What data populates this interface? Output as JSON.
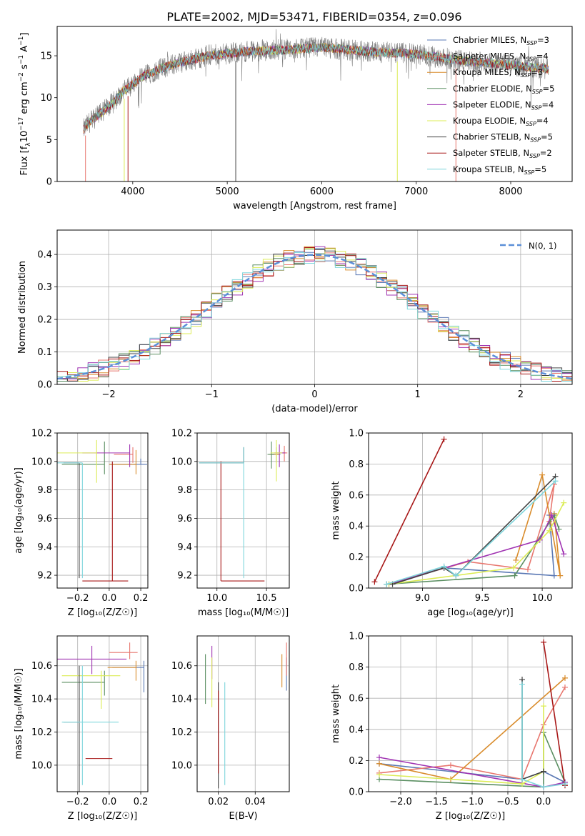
{
  "figure": {
    "title": "PLATE=2002, MJD=53471, FIBERID=0354, z=0.096"
  },
  "chart_data": [
    {
      "id": "spectrum",
      "type": "line",
      "xlabel": "wavelength [Angstrom, rest frame]",
      "ylabel": "Flux [f",
      "ylabel_parts": [
        "Flux [f",
        "λ",
        "10",
        "−17",
        " erg cm",
        "−2",
        " s",
        "−1",
        " A",
        "−1",
        "]"
      ],
      "xlim": [
        3200,
        8650
      ],
      "ylim": [
        0,
        18.5
      ],
      "xticks": [
        4000,
        5000,
        6000,
        7000,
        8000
      ],
      "yticks": [
        0,
        5,
        10,
        15
      ],
      "grid": false,
      "legend_position": "right",
      "legend": [
        {
          "label": "Chabrier MILES",
          "n": "3",
          "color": "#5a78b4"
        },
        {
          "label": "Salpeter MILES",
          "n": "4",
          "color": "#e8776f"
        },
        {
          "label": "Kroupa MILES",
          "n": "3",
          "color": "#d98c2c"
        },
        {
          "label": "Chabrier ELODIE",
          "n": "5",
          "color": "#5b8f62"
        },
        {
          "label": "Salpeter ELODIE",
          "n": "4",
          "color": "#a033b2"
        },
        {
          "label": "Kroupa ELODIE",
          "n": "4",
          "color": "#dcec56"
        },
        {
          "label": "Chabrier STELIB",
          "n": "5",
          "color": "#444444"
        },
        {
          "label": "Salpeter STELIB",
          "n": "2",
          "color": "#a81818"
        },
        {
          "label": "Kroupa STELIB",
          "n": "5",
          "color": "#7fd6dc"
        }
      ],
      "data_color": "#7f7f7f",
      "shape": [
        [
          3480,
          6.2
        ],
        [
          3550,
          7.2
        ],
        [
          3700,
          8.5
        ],
        [
          3800,
          9.5
        ],
        [
          3900,
          10.8
        ],
        [
          4000,
          11.6
        ],
        [
          4100,
          12.5
        ],
        [
          4300,
          13.5
        ],
        [
          4500,
          14.2
        ],
        [
          4800,
          15.0
        ],
        [
          5200,
          15.5
        ],
        [
          5600,
          15.7
        ],
        [
          6000,
          16.0
        ],
        [
          6500,
          15.5
        ],
        [
          7000,
          15.2
        ],
        [
          7500,
          14.4
        ],
        [
          8000,
          13.9
        ],
        [
          8400,
          13.4
        ]
      ]
    },
    {
      "id": "residual-hist",
      "type": "line",
      "xlabel": "(data-model)/error",
      "ylabel": "Normed distribution",
      "xlim": [
        -2.5,
        2.5
      ],
      "ylim": [
        0,
        0.475
      ],
      "xticks": [
        -2,
        -1,
        0,
        1,
        2
      ],
      "xtick_labels": [
        "−2",
        "−1",
        "0",
        "1",
        "2"
      ],
      "yticks": [
        0.0,
        0.1,
        0.2,
        0.3,
        0.4
      ],
      "ytick_labels": [
        "0.0",
        "0.1",
        "0.2",
        "0.3",
        "0.4"
      ],
      "grid": true,
      "legend_position": "top-right",
      "legend": [
        {
          "label": "N(0, 1)",
          "color": "#5b8fd8",
          "style": "dashed"
        }
      ],
      "bin_width": 0.1
    },
    {
      "id": "age-vs-Z",
      "type": "scatter",
      "xlabel": "Z [log₁₀(Z/Z☉)]",
      "ylabel": "age  [log₁₀(age/yr)]",
      "xlim": [
        -0.33,
        0.245
      ],
      "ylim": [
        9.11,
        10.2
      ],
      "xticks": [
        -0.2,
        0.0,
        0.2
      ],
      "xtick_labels": [
        "−0.2",
        "0.0",
        "0.2"
      ],
      "yticks": [
        9.2,
        9.4,
        9.6,
        9.8,
        10.0,
        10.2
      ],
      "ytick_labels": [
        "9.2",
        "9.4",
        "9.6",
        "9.8",
        "10.0",
        "10.2"
      ],
      "grid": true,
      "points": [
        {
          "color": "#5a78b4",
          "x": 0.2,
          "y": 9.98,
          "xerr": [
            0.2,
            0.04
          ],
          "yerr": [
            0.0,
            0.04
          ]
        },
        {
          "color": "#e8776f",
          "x": 0.15,
          "y": 10.05,
          "xerr": [
            0.12,
            0.0
          ],
          "yerr": [
            0.06,
            0.05
          ]
        },
        {
          "color": "#d98c2c",
          "x": 0.17,
          "y": 9.98,
          "xerr": [
            0.17,
            0.0
          ],
          "yerr": [
            0.07,
            0.1
          ]
        },
        {
          "color": "#5b8f62",
          "x": -0.03,
          "y": 9.98,
          "xerr": [
            0.27,
            0.0
          ],
          "yerr": [
            0.07,
            0.16
          ]
        },
        {
          "color": "#a033b2",
          "x": 0.13,
          "y": 10.06,
          "xerr": [
            0.3,
            0.0
          ],
          "yerr": [
            0.1,
            0.06
          ]
        },
        {
          "color": "#dcec56",
          "x": -0.08,
          "y": 10.06,
          "xerr": [
            0.25,
            0.0
          ],
          "yerr": [
            0.21,
            0.09
          ]
        },
        {
          "color": "#444444",
          "x": -0.19,
          "y": 9.99,
          "xerr": [
            0.1,
            0.0
          ],
          "yerr": [
            0.81,
            0.0
          ]
        },
        {
          "color": "#a81818",
          "x": 0.02,
          "y": 9.16,
          "xerr": [
            0.19,
            0.1
          ],
          "yerr": [
            0.0,
            0.84
          ]
        },
        {
          "color": "#7fd6dc",
          "x": -0.17,
          "y": 9.99,
          "xerr": [
            0.16,
            0.0
          ],
          "yerr": [
            0.81,
            0.0
          ]
        }
      ]
    },
    {
      "id": "age-vs-mass",
      "type": "scatter",
      "xlabel": "mass [log₁₀(M/M☉)]",
      "xlim": [
        9.8,
        10.73
      ],
      "ylim": [
        9.11,
        10.2
      ],
      "xticks": [
        10.0,
        10.5
      ],
      "xtick_labels": [
        "10.0",
        "10.5"
      ],
      "yticks": [
        9.2,
        9.4,
        9.6,
        9.8,
        10.0,
        10.2
      ],
      "ytick_labels": [
        "9.2",
        "9.4",
        "9.6",
        "9.8",
        "10.0",
        "10.2"
      ],
      "grid": true,
      "points": [
        {
          "color": "#5a78b4",
          "x": 10.6,
          "y": 10.05,
          "xerr": [
            0.05,
            0.04
          ],
          "yerr": [
            0.05,
            0.05
          ]
        },
        {
          "color": "#e8776f",
          "x": 10.68,
          "y": 10.06,
          "xerr": [
            0.04,
            0.03
          ],
          "yerr": [
            0.06,
            0.05
          ]
        },
        {
          "color": "#d98c2c",
          "x": 10.6,
          "y": 10.05,
          "xerr": [
            0.07,
            0.03
          ],
          "yerr": [
            0.06,
            0.05
          ]
        },
        {
          "color": "#5b8f62",
          "x": 10.55,
          "y": 10.05,
          "xerr": [
            0.04,
            0.03
          ],
          "yerr": [
            0.1,
            0.09
          ]
        },
        {
          "color": "#a033b2",
          "x": 10.63,
          "y": 10.06,
          "xerr": [
            0.05,
            0.06
          ],
          "yerr": [
            0.1,
            0.06
          ]
        },
        {
          "color": "#dcec56",
          "x": 10.6,
          "y": 10.06,
          "xerr": [
            0.06,
            0.06
          ],
          "yerr": [
            0.2,
            0.09
          ]
        },
        {
          "color": "#444444",
          "x": 10.27,
          "y": 9.99,
          "xerr": [
            0.45,
            0.0
          ],
          "yerr": [
            0.0,
            0.11
          ]
        },
        {
          "color": "#a81818",
          "x": 10.04,
          "y": 9.16,
          "xerr": [
            0.0,
            0.44
          ],
          "yerr": [
            0.0,
            0.84
          ]
        },
        {
          "color": "#7fd6dc",
          "x": 10.27,
          "y": 9.99,
          "xerr": [
            0.45,
            0.0
          ],
          "yerr": [
            0.81,
            0.11
          ]
        }
      ]
    },
    {
      "id": "mass-weight-vs-age",
      "type": "line",
      "xlabel": "age  [log₁₀(age/yr)]",
      "ylabel": "mass weight",
      "xlim": [
        8.55,
        10.25
      ],
      "ylim": [
        0,
        1.0
      ],
      "xticks": [
        9.0,
        9.5,
        10.0
      ],
      "xtick_labels": [
        "9.0",
        "9.5",
        "10.0"
      ],
      "yticks": [
        0.0,
        0.2,
        0.4,
        0.6,
        0.8,
        1.0
      ],
      "ytick_labels": [
        "0.0",
        "0.2",
        "0.4",
        "0.6",
        "0.8",
        "1.0"
      ],
      "grid": true,
      "series": [
        {
          "color": "#5a78b4",
          "x": [
            8.7,
            9.18,
            10.1,
            10.06
          ],
          "y": [
            0.025,
            0.13,
            0.08,
            0.47
          ]
        },
        {
          "color": "#e8776f",
          "x": [
            8.7,
            9.38,
            9.88,
            10.1,
            10.06
          ],
          "y": [
            0.025,
            0.17,
            0.12,
            0.67,
            0.43
          ]
        },
        {
          "color": "#d98c2c",
          "x": [
            9.78,
            10.0,
            10.15,
            10.1
          ],
          "y": [
            0.18,
            0.73,
            0.08,
            0.48
          ]
        },
        {
          "color": "#5b8f62",
          "x": [
            8.7,
            9.77,
            10.1,
            10.14
          ],
          "y": [
            0.025,
            0.08,
            0.47,
            0.38
          ]
        },
        {
          "color": "#a033b2",
          "x": [
            8.72,
            9.98,
            10.08,
            10.18
          ],
          "y": [
            0.025,
            0.31,
            0.47,
            0.22
          ]
        },
        {
          "color": "#dcec56",
          "x": [
            8.72,
            9.76,
            10.06,
            10.18
          ],
          "y": [
            0.025,
            0.13,
            0.37,
            0.55
          ]
        },
        {
          "color": "#444444",
          "x": [
            8.75,
            9.18,
            9.28,
            10.11
          ],
          "y": [
            0.025,
            0.13,
            0.08,
            0.72
          ]
        },
        {
          "color": "#a81818",
          "x": [
            8.6,
            9.18
          ],
          "y": [
            0.04,
            0.96
          ]
        },
        {
          "color": "#7fd6dc",
          "x": [
            8.7,
            9.18,
            9.28,
            10.11
          ],
          "y": [
            0.025,
            0.14,
            0.08,
            0.69
          ]
        }
      ]
    },
    {
      "id": "mass-vs-Z",
      "type": "scatter",
      "xlabel": "Z [log₁₀(Z/Z☉)]",
      "ylabel": "mass [log₁₀(M/M☉)]",
      "xlim": [
        -0.33,
        0.245
      ],
      "ylim": [
        9.84,
        10.78
      ],
      "xticks": [
        -0.2,
        0.0,
        0.2
      ],
      "xtick_labels": [
        "−0.2",
        "0.0",
        "0.2"
      ],
      "yticks": [
        10.0,
        10.2,
        10.4,
        10.6
      ],
      "ytick_labels": [
        "10.0",
        "10.2",
        "10.4",
        "10.6"
      ],
      "grid": true,
      "points": [
        {
          "color": "#5a78b4",
          "x": 0.22,
          "y": 10.59,
          "xerr": [
            0.2,
            0.0
          ],
          "yerr": [
            0.15,
            0.04
          ]
        },
        {
          "color": "#e8776f",
          "x": 0.13,
          "y": 10.68,
          "xerr": [
            0.13,
            0.05
          ],
          "yerr": [
            0.04,
            0.06
          ]
        },
        {
          "color": "#d98c2c",
          "x": 0.17,
          "y": 10.59,
          "xerr": [
            0.18,
            0.0
          ],
          "yerr": [
            0.08,
            0.04
          ]
        },
        {
          "color": "#5b8f62",
          "x": -0.03,
          "y": 10.5,
          "xerr": [
            0.27,
            0.0
          ],
          "yerr": [
            0.08,
            0.07
          ]
        },
        {
          "color": "#a033b2",
          "x": -0.11,
          "y": 10.64,
          "xerr": [
            0.25,
            0.22
          ],
          "yerr": [
            0.09,
            0.08
          ]
        },
        {
          "color": "#dcec56",
          "x": -0.05,
          "y": 10.54,
          "xerr": [
            0.25,
            0.12
          ],
          "yerr": [
            0.2,
            0.03
          ]
        },
        {
          "color": "#444444",
          "x": -0.19,
          "y": 10.26,
          "xerr": [
            0.1,
            0.0
          ],
          "yerr": [
            0.42,
            0.34
          ]
        },
        {
          "color": "#a81818",
          "x": 0.02,
          "y": 10.04,
          "xerr": [
            0.17,
            0.0
          ],
          "yerr": [
            0.0,
            0.0
          ]
        },
        {
          "color": "#7fd6dc",
          "x": -0.17,
          "y": 10.26,
          "xerr": [
            0.13,
            0.23
          ],
          "yerr": [
            0.38,
            0.34
          ]
        }
      ]
    },
    {
      "id": "mass-vs-ebv",
      "type": "scatter",
      "xlabel": "E(B-V)",
      "xlim": [
        0.0085,
        0.0585
      ],
      "ylim": [
        9.84,
        10.78
      ],
      "xticks": [
        0.02,
        0.04
      ],
      "xtick_labels": [
        "0.02",
        "0.04"
      ],
      "yticks": [
        10.0,
        10.2,
        10.4,
        10.6
      ],
      "ytick_labels": [
        "10.0",
        "10.2",
        "10.4",
        "10.6"
      ],
      "grid": true,
      "points": [
        {
          "color": "#5a78b4",
          "x": 0.057,
          "y": 10.55,
          "xerr": [
            0,
            0
          ],
          "yerr": [
            0.1,
            0.1
          ]
        },
        {
          "color": "#e8776f",
          "x": 0.057,
          "y": 10.64,
          "xerr": [
            0,
            0
          ],
          "yerr": [
            0.1,
            0.1
          ]
        },
        {
          "color": "#d98c2c",
          "x": 0.0545,
          "y": 10.57,
          "xerr": [
            0,
            0
          ],
          "yerr": [
            0.1,
            0.1
          ]
        },
        {
          "color": "#5b8f62",
          "x": 0.013,
          "y": 10.52,
          "xerr": [
            0,
            0
          ],
          "yerr": [
            0.15,
            0.15
          ]
        },
        {
          "color": "#a033b2",
          "x": 0.0165,
          "y": 10.62,
          "xerr": [
            0,
            0
          ],
          "yerr": [
            0.1,
            0.1
          ]
        },
        {
          "color": "#dcec56",
          "x": 0.0165,
          "y": 10.5,
          "xerr": [
            0,
            0
          ],
          "yerr": [
            0.15,
            0.15
          ]
        },
        {
          "color": "#444444",
          "x": 0.02,
          "y": 10.28,
          "xerr": [
            0,
            0
          ],
          "yerr": [
            0.42,
            0.22
          ]
        },
        {
          "color": "#a81818",
          "x": 0.02,
          "y": 10.2,
          "xerr": [
            0,
            0
          ],
          "yerr": [
            0.25,
            0.25
          ]
        },
        {
          "color": "#7fd6dc",
          "x": 0.0235,
          "y": 10.19,
          "xerr": [
            0,
            0
          ],
          "yerr": [
            0.31,
            0.31
          ]
        }
      ]
    },
    {
      "id": "mass-weight-vs-Z",
      "type": "line",
      "xlabel": "Z [log₁₀(Z/Z☉)]",
      "ylabel": "mass weight",
      "xlim": [
        -2.45,
        0.4
      ],
      "ylim": [
        0,
        1.0
      ],
      "xticks": [
        -2.0,
        -1.5,
        -1.0,
        -0.5,
        0.0
      ],
      "xtick_labels": [
        "−2.0",
        "−1.5",
        "−1.0",
        "−0.5",
        "0.0"
      ],
      "yticks": [
        0.0,
        0.2,
        0.4,
        0.6,
        0.8,
        1.0
      ],
      "ytick_labels": [
        "0.0",
        "0.2",
        "0.4",
        "0.6",
        "0.8",
        "1.0"
      ],
      "grid": true,
      "series": [
        {
          "color": "#5a78b4",
          "x": [
            -2.3,
            -0.3,
            0.0,
            0.3
          ],
          "y": [
            0.18,
            0.08,
            0.13,
            0.06
          ]
        },
        {
          "color": "#e8776f",
          "x": [
            -2.3,
            -1.3,
            -0.3,
            0.0,
            0.3
          ],
          "y": [
            0.12,
            0.17,
            0.08,
            0.43,
            0.67
          ]
        },
        {
          "color": "#d98c2c",
          "x": [
            -2.3,
            -1.3,
            0.3
          ],
          "y": [
            0.18,
            0.08,
            0.73
          ]
        },
        {
          "color": "#5b8f62",
          "x": [
            -2.3,
            0.0,
            0.0,
            0.3
          ],
          "y": [
            0.08,
            0.03,
            0.38,
            0.06
          ]
        },
        {
          "color": "#a033b2",
          "x": [
            -2.3,
            0.0,
            0.3
          ],
          "y": [
            0.22,
            0.03,
            0.06
          ]
        },
        {
          "color": "#dcec56",
          "x": [
            -2.3,
            -0.3,
            0.0,
            0.0
          ],
          "y": [
            0.11,
            0.05,
            0.13,
            0.55
          ]
        },
        {
          "color": "#444444",
          "x": [
            -0.3,
            -0.3,
            0.0
          ],
          "y": [
            0.72,
            0.08,
            0.13
          ]
        },
        {
          "color": "#a81818",
          "x": [
            0.0,
            0.3
          ],
          "y": [
            0.96,
            0.04
          ]
        },
        {
          "color": "#7fd6dc",
          "x": [
            -0.3,
            -0.3,
            0.0,
            0.3
          ],
          "y": [
            0.69,
            0.08,
            0.03,
            0.05
          ]
        }
      ]
    }
  ]
}
